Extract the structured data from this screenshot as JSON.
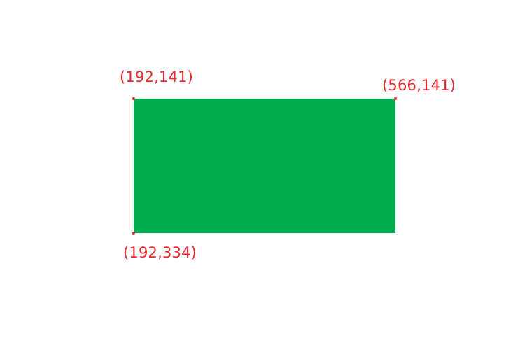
{
  "colors": {
    "background": "#ffffff",
    "rectangle_fill": "#00ad4f",
    "annotation": "#e8262d"
  },
  "labels": {
    "top_left": "(192,141)",
    "top_right": "(566,141)",
    "bottom_left": "(192,334)"
  }
}
